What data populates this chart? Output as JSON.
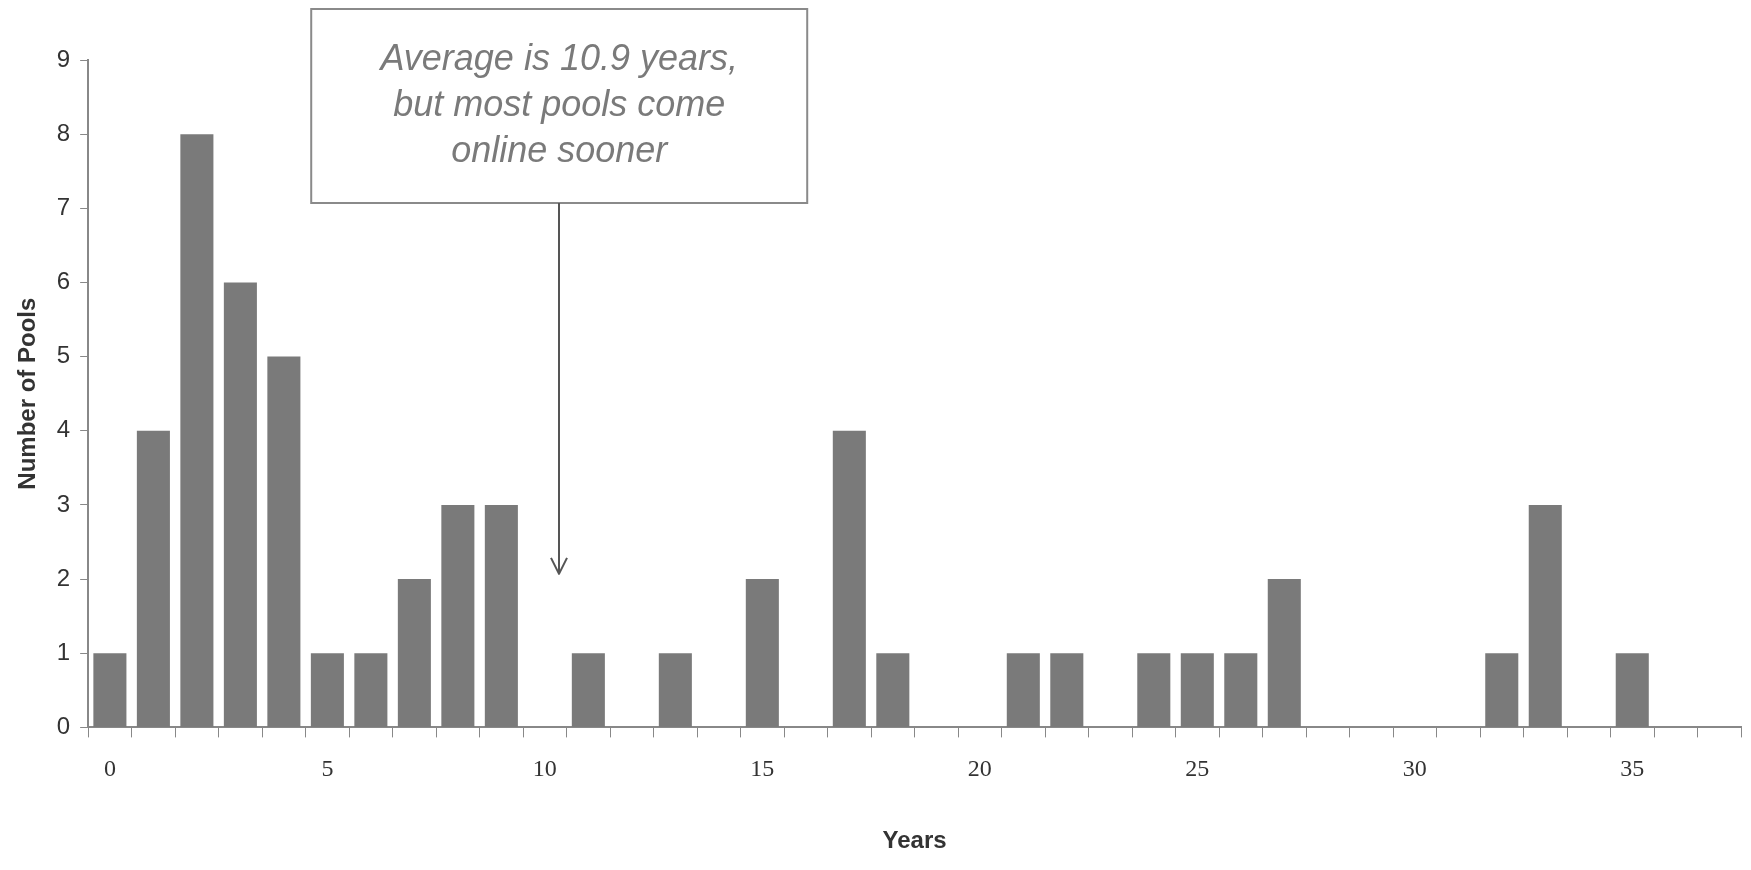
{
  "chart_data": {
    "type": "bar",
    "xlabel": "Years",
    "ylabel": "Number of Pools",
    "categories": [
      "0",
      null,
      null,
      null,
      null,
      "5",
      null,
      null,
      null,
      null,
      "10",
      null,
      null,
      null,
      null,
      "15",
      null,
      null,
      null,
      null,
      "20",
      null,
      null,
      null,
      null,
      "25",
      null,
      null,
      null,
      null,
      "30",
      null,
      null,
      null,
      null,
      "35",
      null,
      null
    ],
    "values": [
      1,
      4,
      8,
      6,
      5,
      1,
      1,
      2,
      3,
      3,
      0,
      1,
      0,
      1,
      0,
      2,
      0,
      4,
      1,
      0,
      0,
      1,
      1,
      0,
      1,
      1,
      1,
      2,
      0,
      0,
      0,
      0,
      1,
      3,
      0,
      1,
      0,
      0
    ],
    "color": "#7a7a7a",
    "ylim": [
      0,
      9
    ],
    "yticks": [
      0,
      1,
      2,
      3,
      4,
      5,
      6,
      7,
      8,
      9
    ],
    "grid": false,
    "legend": false,
    "annotations": [
      "Average is 10.9 years, but most pools come online sooner"
    ]
  }
}
